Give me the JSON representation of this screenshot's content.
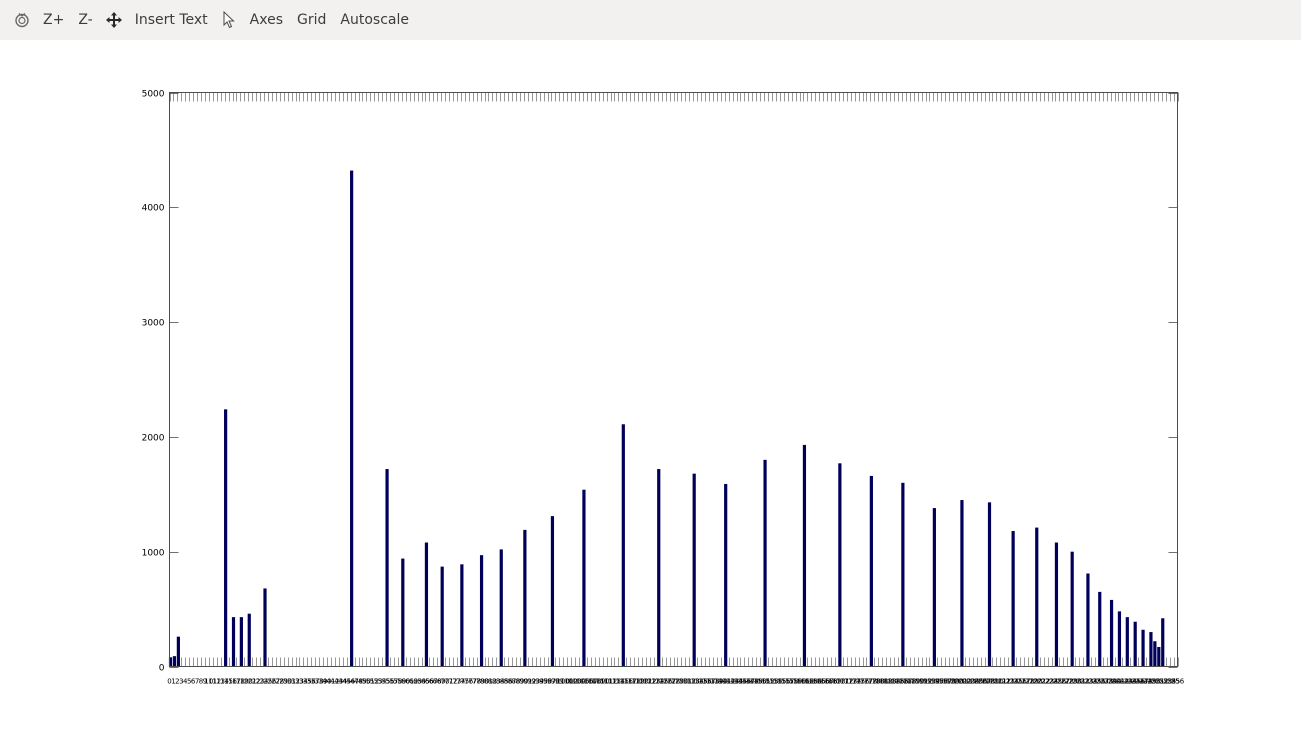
{
  "toolbar": {
    "items": [
      {
        "icon": "reset-view-icon"
      },
      {
        "label": "Z+"
      },
      {
        "label": "Z-"
      },
      {
        "icon": "pan-icon"
      },
      {
        "label": "Insert Text"
      },
      {
        "icon": "pointer-icon"
      },
      {
        "label": "Axes"
      },
      {
        "label": "Grid"
      },
      {
        "label": "Autoscale"
      }
    ]
  },
  "colors": {
    "bar": "#00005a",
    "axis": "#4d4d4d",
    "tick": "#555555"
  },
  "chart_data": {
    "type": "bar",
    "xlim": [
      0,
      256
    ],
    "ylim": [
      0,
      5000
    ],
    "yticks": [
      0,
      1000,
      2000,
      3000,
      4000,
      5000
    ],
    "grid": false,
    "x": [
      0,
      1,
      2,
      14,
      16,
      18,
      20,
      24,
      46,
      55,
      59,
      65,
      69,
      74,
      79,
      84,
      90,
      97,
      105,
      115,
      124,
      133,
      141,
      151,
      161,
      170,
      178,
      186,
      194,
      201,
      208,
      214,
      220,
      225,
      229,
      233,
      236,
      239,
      241,
      243,
      245,
      247,
      249,
      250,
      251,
      252
    ],
    "values": [
      80,
      90,
      260,
      2240,
      430,
      430,
      460,
      680,
      4320,
      1720,
      940,
      1080,
      870,
      890,
      970,
      1020,
      1190,
      1310,
      1540,
      2110,
      1720,
      1680,
      1590,
      1800,
      1930,
      1770,
      1660,
      1600,
      1380,
      1450,
      1430,
      1180,
      1210,
      1080,
      1000,
      810,
      650,
      580,
      480,
      430,
      390,
      320,
      300,
      220,
      170,
      420
    ]
  }
}
